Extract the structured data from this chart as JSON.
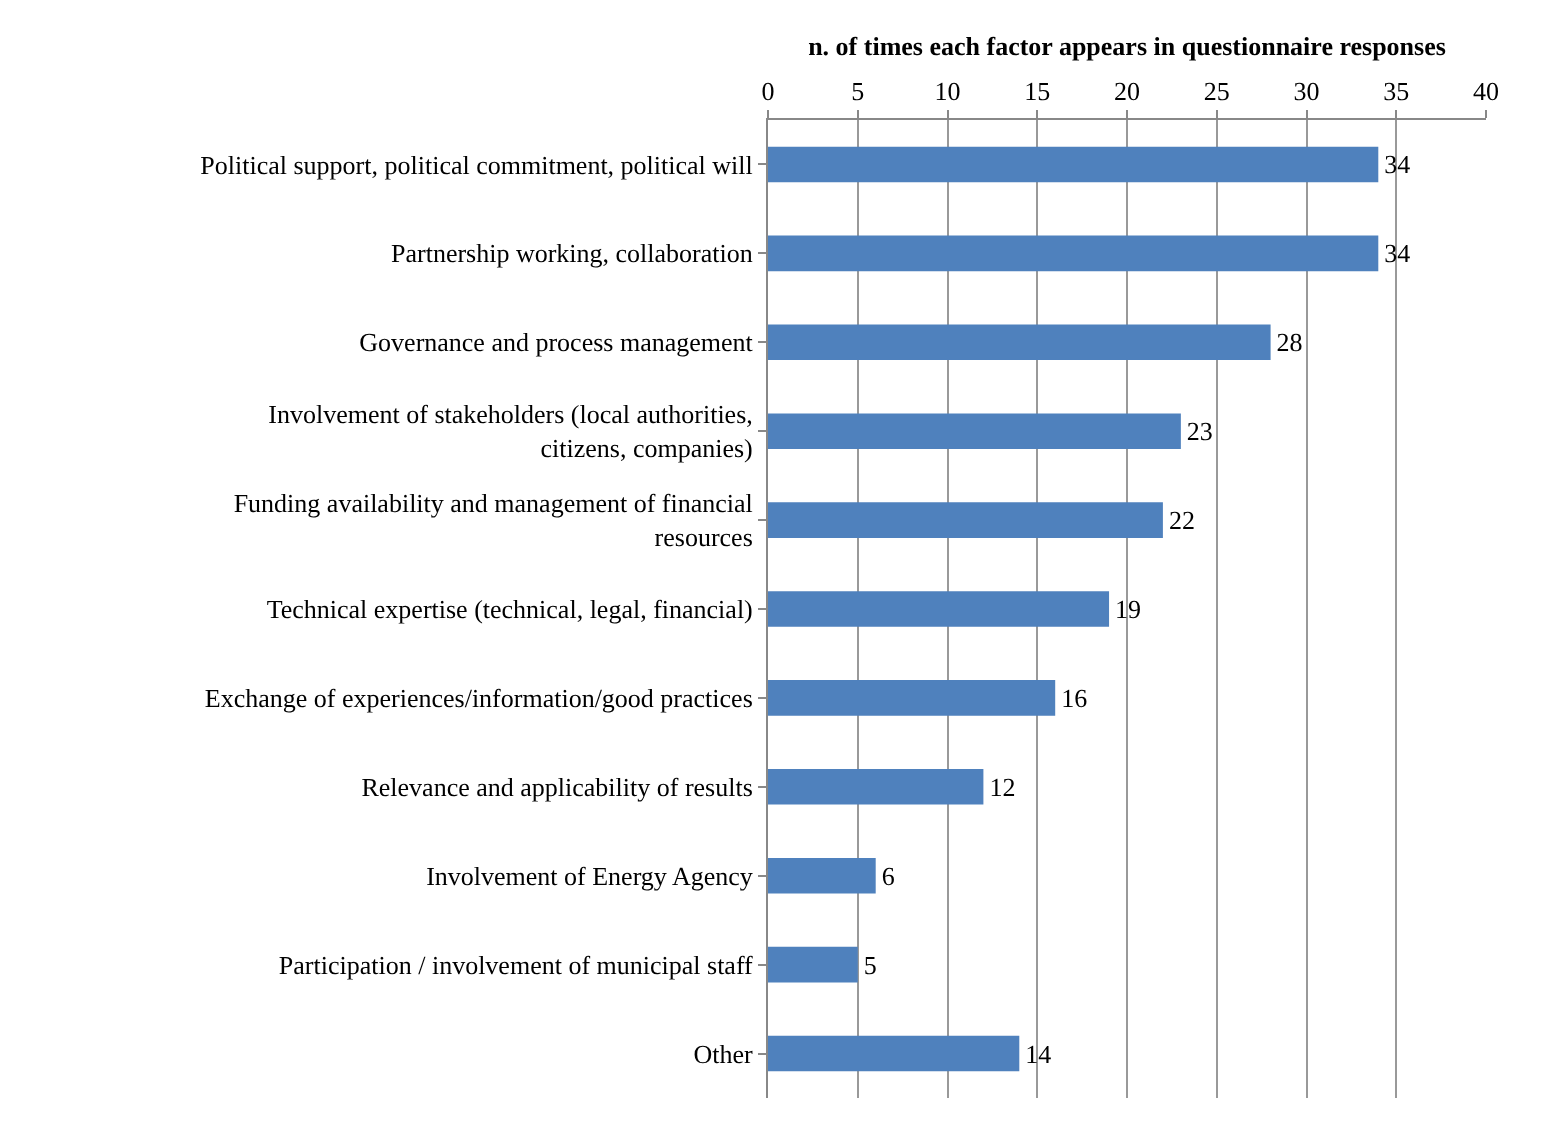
{
  "chart_data": {
    "type": "bar",
    "orientation": "horizontal",
    "xlabel": "n. of times each factor appears in questionnaire responses",
    "categories": [
      "Political support, political commitment, political will",
      "Partnership working, collaboration",
      "Governance and process management",
      "Involvement of stakeholders (local authorities, citizens, companies)",
      "Funding availability and management of financial resources",
      "Technical expertise (technical, legal, financial)",
      "Exchange of experiences/information/good practices",
      "Relevance and applicability of results",
      "Involvement of Energy Agency",
      "Participation / involvement of municipal staff",
      "Other"
    ],
    "values": [
      34,
      34,
      28,
      23,
      22,
      19,
      16,
      12,
      6,
      5,
      14
    ],
    "color": "#4f81bd",
    "xlim": [
      0,
      40
    ],
    "xticks": [
      0,
      5,
      10,
      15,
      20,
      25,
      30,
      35,
      40
    ],
    "grid": "x",
    "data_labels": true
  }
}
